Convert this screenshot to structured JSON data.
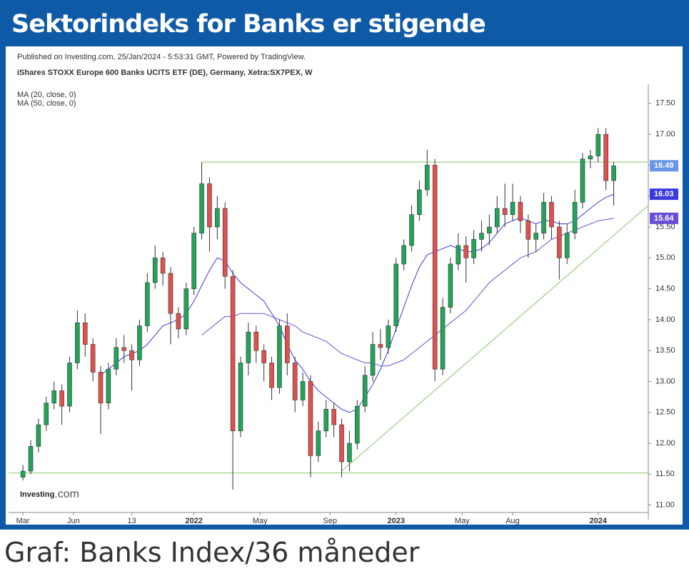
{
  "header": {
    "title": "Sektorindeks for Banks er stigende"
  },
  "chart_data": {
    "type": "candlestick",
    "published": "Published on Investing.com, 25/Jan/2024 - 5:53:31 GMT, Powered by TradingView.",
    "instrument": "iShares STOXX Europe 600 Banks UCITS ETF (DE), Germany, Xetra:SX7PEX, W",
    "logo": "Investing",
    "logo_suffix": ".com",
    "up_color": "#22a45a",
    "down_color": "#e0504e",
    "last_tag_color": "#6a96e8",
    "x": [
      0,
      2,
      4,
      6,
      8,
      10,
      12,
      14,
      16,
      18,
      20,
      22,
      24,
      26,
      28,
      30,
      32,
      34,
      36,
      38,
      40,
      42,
      44,
      46,
      48,
      50,
      52,
      54,
      56,
      58,
      60,
      62,
      64,
      66,
      68,
      70,
      72,
      74,
      76,
      78,
      80,
      82,
      84,
      86,
      88,
      90,
      92,
      94,
      96,
      98,
      100,
      102,
      104,
      106,
      108,
      110,
      112,
      114,
      116,
      118,
      120,
      122,
      124,
      126,
      128,
      130,
      132,
      134,
      136,
      138,
      140,
      142,
      144,
      146,
      148,
      150,
      152
    ],
    "open": [
      11.45,
      11.55,
      11.95,
      12.3,
      12.65,
      12.85,
      12.6,
      13.3,
      13.95,
      13.6,
      13.15,
      12.65,
      13.2,
      13.55,
      13.5,
      13.35,
      13.9,
      14.6,
      15.0,
      14.75,
      14.1,
      13.85,
      14.5,
      15.4,
      16.2,
      15.5,
      15.8,
      14.7,
      12.2,
      13.3,
      13.8,
      13.5,
      13.3,
      12.9,
      13.9,
      13.3,
      12.7,
      13.0,
      11.8,
      12.2,
      12.55,
      12.3,
      11.7,
      12.0,
      12.6,
      13.1,
      13.6,
      13.55,
      13.9,
      14.9,
      15.2,
      15.7,
      16.1,
      16.5,
      13.2,
      14.2,
      14.9,
      15.2,
      15.0,
      15.3,
      15.4,
      15.5,
      15.8,
      15.7,
      15.9,
      15.6,
      15.3,
      15.4,
      15.9,
      15.5,
      15.0,
      15.4,
      15.9,
      16.6,
      16.65,
      17.0,
      16.25
    ],
    "high": [
      11.65,
      12.05,
      12.4,
      12.75,
      13.0,
      12.95,
      13.4,
      14.15,
      14.1,
      13.7,
      13.25,
      13.3,
      13.7,
      13.75,
      13.6,
      14.0,
      14.75,
      15.2,
      15.1,
      14.85,
      14.2,
      14.6,
      15.5,
      16.55,
      16.3,
      16.0,
      15.9,
      14.8,
      13.4,
      13.95,
      13.9,
      13.6,
      13.4,
      14.0,
      14.1,
      13.4,
      13.15,
      13.1,
      12.35,
      12.7,
      12.65,
      12.4,
      12.2,
      12.7,
      13.25,
      13.8,
      13.85,
      14.0,
      15.0,
      15.3,
      15.85,
      16.25,
      16.75,
      16.6,
      14.35,
      15.0,
      15.4,
      15.35,
      15.45,
      15.6,
      15.7,
      16.0,
      16.2,
      16.2,
      16.0,
      15.7,
      15.55,
      16.05,
      16.0,
      15.6,
      15.55,
      16.1,
      16.7,
      16.75,
      17.1,
      17.1,
      16.55
    ],
    "low": [
      11.4,
      11.5,
      11.85,
      12.2,
      12.55,
      12.3,
      12.5,
      13.2,
      13.4,
      13.0,
      12.15,
      12.55,
      13.1,
      13.3,
      12.85,
      13.25,
      13.8,
      14.5,
      14.55,
      13.6,
      13.7,
      13.75,
      14.4,
      15.3,
      15.1,
      15.3,
      14.5,
      11.25,
      12.1,
      13.1,
      13.3,
      13.0,
      12.7,
      12.8,
      13.1,
      12.5,
      12.6,
      11.45,
      11.7,
      12.1,
      12.1,
      11.45,
      11.55,
      11.9,
      12.5,
      13.0,
      13.35,
      13.45,
      13.8,
      14.8,
      15.1,
      15.6,
      16.0,
      13.0,
      13.1,
      14.1,
      14.8,
      14.6,
      14.9,
      15.1,
      15.2,
      15.4,
      15.5,
      15.6,
      15.4,
      15.0,
      15.1,
      15.3,
      15.3,
      14.65,
      14.9,
      15.3,
      15.8,
      16.45,
      16.55,
      16.1,
      15.85
    ],
    "close": [
      11.55,
      11.95,
      12.3,
      12.65,
      12.85,
      12.6,
      13.3,
      13.95,
      13.6,
      13.15,
      12.65,
      13.2,
      13.55,
      13.5,
      13.35,
      13.9,
      14.6,
      15.0,
      14.75,
      14.1,
      13.85,
      14.5,
      15.4,
      16.2,
      15.5,
      15.8,
      14.7,
      12.2,
      13.3,
      13.8,
      13.5,
      13.3,
      12.9,
      13.9,
      13.3,
      12.7,
      13.0,
      11.8,
      12.2,
      12.55,
      12.3,
      11.7,
      12.0,
      12.6,
      13.1,
      13.6,
      13.55,
      13.9,
      14.9,
      15.2,
      15.7,
      16.1,
      16.5,
      13.2,
      14.2,
      14.9,
      15.2,
      15.0,
      15.3,
      15.4,
      15.5,
      15.8,
      15.7,
      15.9,
      15.6,
      15.3,
      15.4,
      15.9,
      15.5,
      15.0,
      15.4,
      15.9,
      16.6,
      16.65,
      17.0,
      16.25,
      16.49
    ],
    "indicators": [
      {
        "name": "MA (20, close, 0)",
        "color": "#3a3ae0",
        "values": [
          null,
          null,
          null,
          null,
          null,
          null,
          null,
          null,
          null,
          null,
          13.1,
          13.2,
          13.3,
          13.4,
          13.45,
          13.5,
          13.6,
          13.75,
          13.9,
          13.95,
          14.0,
          14.1,
          14.3,
          14.55,
          14.8,
          15.0,
          14.95,
          14.75,
          14.6,
          14.5,
          14.4,
          14.3,
          14.1,
          13.9,
          13.6,
          13.35,
          13.2,
          13.0,
          12.85,
          12.75,
          12.65,
          12.55,
          12.5,
          12.55,
          12.75,
          12.95,
          13.2,
          13.5,
          13.85,
          14.2,
          14.55,
          14.85,
          15.05,
          15.1,
          15.15,
          15.2,
          15.15,
          15.1,
          15.1,
          15.15,
          15.25,
          15.4,
          15.55,
          15.6,
          15.65,
          15.6,
          15.55,
          15.6,
          15.6,
          15.55,
          15.55,
          15.6,
          15.7,
          15.8,
          15.9,
          15.98,
          16.03
        ]
      },
      {
        "name": "MA (50, close, 0)",
        "color": "#6a4fd6",
        "values": [
          null,
          null,
          null,
          null,
          null,
          null,
          null,
          null,
          null,
          null,
          null,
          null,
          null,
          null,
          null,
          null,
          null,
          null,
          null,
          null,
          null,
          null,
          null,
          13.75,
          13.85,
          13.95,
          14.05,
          14.05,
          14.1,
          14.1,
          14.1,
          14.1,
          14.05,
          14.0,
          13.95,
          13.9,
          13.8,
          13.75,
          13.7,
          13.65,
          13.55,
          13.45,
          13.4,
          13.35,
          13.3,
          13.3,
          13.25,
          13.25,
          13.3,
          13.35,
          13.45,
          13.55,
          13.65,
          13.75,
          13.85,
          13.95,
          14.05,
          14.15,
          14.3,
          14.45,
          14.6,
          14.7,
          14.8,
          14.9,
          15.0,
          15.05,
          15.1,
          15.2,
          15.3,
          15.35,
          15.4,
          15.45,
          15.5,
          15.55,
          15.6,
          15.62,
          15.64
        ]
      }
    ],
    "lines": [
      {
        "color": "#a3d08a",
        "x": [
          46,
          160.9
        ],
        "y": [
          16.55,
          16.55
        ]
      },
      {
        "color": "#a3d08a",
        "x": [
          -3.7,
          160.9
        ],
        "y": [
          11.52,
          11.52
        ]
      },
      {
        "color": "#a3d08a",
        "x": [
          82,
          160.9
        ],
        "y": [
          11.55,
          15.85
        ]
      }
    ],
    "xlim": [
      -3.7,
      160.9
    ],
    "ylim": [
      10.88,
      17.81
    ],
    "xticks": [
      {
        "value": 0,
        "label": "Mar"
      },
      {
        "value": 13,
        "label": "Jun"
      },
      {
        "value": 28,
        "label": "13"
      },
      {
        "value": 44,
        "label": "2022"
      },
      {
        "value": 61,
        "label": "May"
      },
      {
        "value": 79,
        "label": "Sep"
      },
      {
        "value": 96,
        "label": "2023"
      },
      {
        "value": 113,
        "label": "May"
      },
      {
        "value": 126,
        "label": "Aug"
      },
      {
        "value": 148,
        "label": "2024"
      }
    ],
    "yticks": [
      {
        "value": 11,
        "label": "11.00"
      },
      {
        "value": 11.5,
        "label": "11.50"
      },
      {
        "value": 12,
        "label": "12.00"
      },
      {
        "value": 12.5,
        "label": "12.50"
      },
      {
        "value": 13,
        "label": "13.00"
      },
      {
        "value": 13.5,
        "label": "13.50"
      },
      {
        "value": 14,
        "label": "14.00"
      },
      {
        "value": 14.5,
        "label": "14.50"
      },
      {
        "value": 15,
        "label": "15.00"
      },
      {
        "value": 15.5,
        "label": "15.50"
      },
      {
        "value": 16,
        "label": "16.00"
      },
      {
        "value": 16.5,
        "label": "16.50"
      },
      {
        "value": 17,
        "label": "17.00"
      },
      {
        "value": 17.5,
        "label": "17.50"
      }
    ]
  },
  "caption": "Graf: Banks Index/36 måneder"
}
